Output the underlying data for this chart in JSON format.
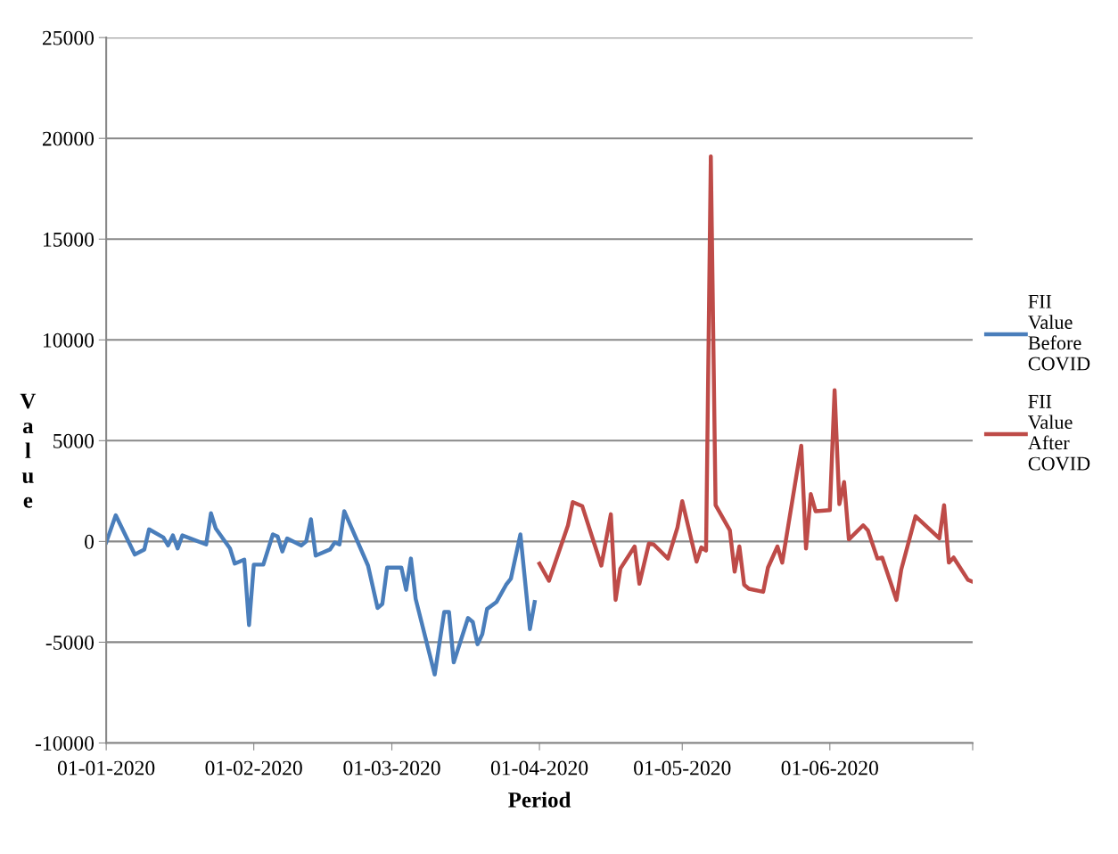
{
  "chart_data": {
    "type": "line",
    "xlabel": "Period",
    "ylabel": "Value",
    "xlim": [
      "2020-01-01",
      "2020-07-01"
    ],
    "xticks": [
      {
        "value": "2020-01-01",
        "label": "01-01-2020"
      },
      {
        "value": "2020-02-01",
        "label": "01-02-2020"
      },
      {
        "value": "2020-03-01",
        "label": "01-03-2020"
      },
      {
        "value": "2020-04-01",
        "label": "01-04-2020"
      },
      {
        "value": "2020-05-01",
        "label": "01-05-2020"
      },
      {
        "value": "2020-06-01",
        "label": "01-06-2020"
      },
      {
        "value": "2020-07-01",
        "label": null
      }
    ],
    "ylim": [
      -10000,
      25000
    ],
    "yticks": [
      -10000,
      -5000,
      0,
      5000,
      10000,
      15000,
      20000,
      25000
    ],
    "grid": "y",
    "legend": "right",
    "marker": "none",
    "line_style": "solid",
    "series": [
      {
        "name": "FII Value Before COVID",
        "color": "#4a7ebb",
        "x": [
          "2020-01-01",
          "2020-01-03",
          "2020-01-07",
          "2020-01-09",
          "2020-01-10",
          "2020-01-13",
          "2020-01-14",
          "2020-01-15",
          "2020-01-16",
          "2020-01-17",
          "2020-01-22",
          "2020-01-23",
          "2020-01-24",
          "2020-01-27",
          "2020-01-28",
          "2020-01-30",
          "2020-01-31",
          "2020-02-01",
          "2020-02-03",
          "2020-02-05",
          "2020-02-06",
          "2020-02-07",
          "2020-02-08",
          "2020-02-11",
          "2020-02-12",
          "2020-02-13",
          "2020-02-14",
          "2020-02-17",
          "2020-02-18",
          "2020-02-19",
          "2020-02-20",
          "2020-02-25",
          "2020-02-27",
          "2020-02-28",
          "2020-02-29",
          "2020-03-03",
          "2020-03-04",
          "2020-03-05",
          "2020-03-06",
          "2020-03-10",
          "2020-03-12",
          "2020-03-13",
          "2020-03-14",
          "2020-03-17",
          "2020-03-18",
          "2020-03-19",
          "2020-03-20",
          "2020-03-21",
          "2020-03-23",
          "2020-03-25",
          "2020-03-26",
          "2020-03-28",
          "2020-03-30",
          "2020-03-31"
        ],
        "values": [
          -50,
          1300,
          -650,
          -400,
          600,
          200,
          -200,
          300,
          -350,
          300,
          -150,
          1400,
          650,
          -350,
          -1100,
          -900,
          -4150,
          -1150,
          -1150,
          350,
          250,
          -500,
          150,
          -200,
          0,
          1100,
          -700,
          -400,
          -50,
          -150,
          1500,
          -1200,
          -3300,
          -3100,
          -1300,
          -1300,
          -2400,
          -850,
          -2850,
          -6600,
          -3500,
          -3500,
          -6000,
          -3800,
          -4000,
          -5100,
          -4600,
          -3350,
          -3000,
          -2150,
          -1850,
          350,
          -4350,
          -3000
        ]
      },
      {
        "name": "FII Value After COVID",
        "color": "#be4b48",
        "x": [
          "2020-04-01",
          "2020-04-03",
          "2020-04-07",
          "2020-04-08",
          "2020-04-10",
          "2020-04-14",
          "2020-04-16",
          "2020-04-17",
          "2020-04-18",
          "2020-04-21",
          "2020-04-22",
          "2020-04-24",
          "2020-04-25",
          "2020-04-28",
          "2020-04-30",
          "2020-05-01",
          "2020-05-04",
          "2020-05-05",
          "2020-05-06",
          "2020-05-07",
          "2020-05-08",
          "2020-05-11",
          "2020-05-12",
          "2020-05-13",
          "2020-05-14",
          "2020-05-15",
          "2020-05-18",
          "2020-05-19",
          "2020-05-21",
          "2020-05-22",
          "2020-05-26",
          "2020-05-27",
          "2020-05-28",
          "2020-05-29",
          "2020-06-01",
          "2020-06-02",
          "2020-06-03",
          "2020-06-04",
          "2020-06-05",
          "2020-06-08",
          "2020-06-09",
          "2020-06-11",
          "2020-06-12",
          "2020-06-15",
          "2020-06-16",
          "2020-06-19",
          "2020-06-24",
          "2020-06-25",
          "2020-06-26",
          "2020-06-27",
          "2020-06-30",
          "2020-07-01"
        ],
        "values": [
          -1100,
          -1950,
          800,
          1950,
          1750,
          -1200,
          1350,
          -2900,
          -1350,
          -250,
          -2100,
          -100,
          -150,
          -850,
          700,
          2000,
          -1000,
          -300,
          -450,
          19100,
          1800,
          550,
          -1500,
          -250,
          -2150,
          -2350,
          -2500,
          -1300,
          -250,
          -1050,
          4750,
          -350,
          2350,
          1500,
          1550,
          7500,
          1850,
          2950,
          100,
          800,
          550,
          -850,
          -800,
          -2900,
          -1400,
          1250,
          150,
          1800,
          -1050,
          -800,
          -1900,
          -2000
        ]
      }
    ]
  }
}
